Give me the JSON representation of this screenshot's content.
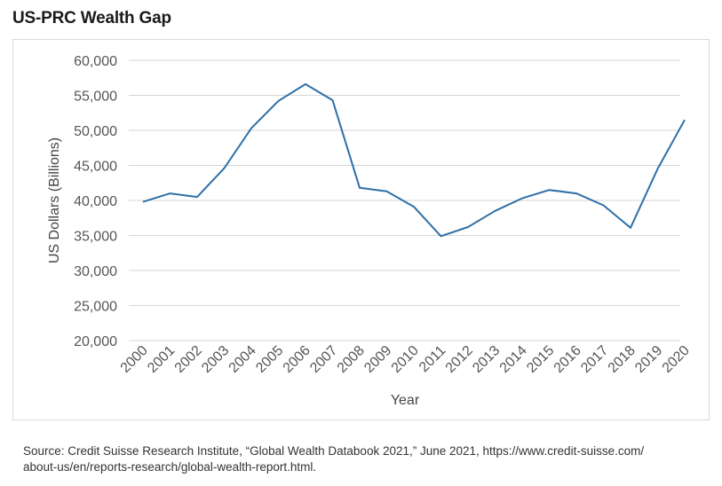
{
  "page": {
    "title": "US-PRC Wealth Gap",
    "source_line1": "Source: Credit Suisse Research Institute, “Global Wealth Databook 2021,” June 2021, https://www.credit-suisse.com/",
    "source_line2": "about-us/en/reports-research/global-wealth-report.html."
  },
  "chart_data": {
    "type": "line",
    "title": "US-PRC Wealth Gap",
    "xlabel": "Year",
    "ylabel": "US Dollars (Billions)",
    "ylim": [
      20000,
      60000
    ],
    "yticks": [
      20000,
      25000,
      30000,
      35000,
      40000,
      45000,
      50000,
      55000,
      60000
    ],
    "ytick_labels": [
      "20,000",
      "25,000",
      "30,000",
      "35,000",
      "40,000",
      "45,000",
      "50,000",
      "55,000",
      "60,000"
    ],
    "grid": true,
    "line_color": "#2e6fa7",
    "categories": [
      "2000",
      "2001",
      "2002",
      "2003",
      "2004",
      "2005",
      "2006",
      "2007",
      "2008",
      "2009",
      "2010",
      "2011",
      "2012",
      "2013",
      "2014",
      "2015",
      "2016",
      "2017",
      "2018",
      "2019",
      "2020"
    ],
    "series": [
      {
        "values": [
          39800,
          41000,
          40500,
          44600,
          50300,
          54200,
          56600,
          54300,
          41800,
          41300,
          39100,
          34900,
          36200,
          38500,
          40300,
          41500,
          41000,
          39300,
          36100,
          44500,
          51500
        ]
      }
    ]
  }
}
